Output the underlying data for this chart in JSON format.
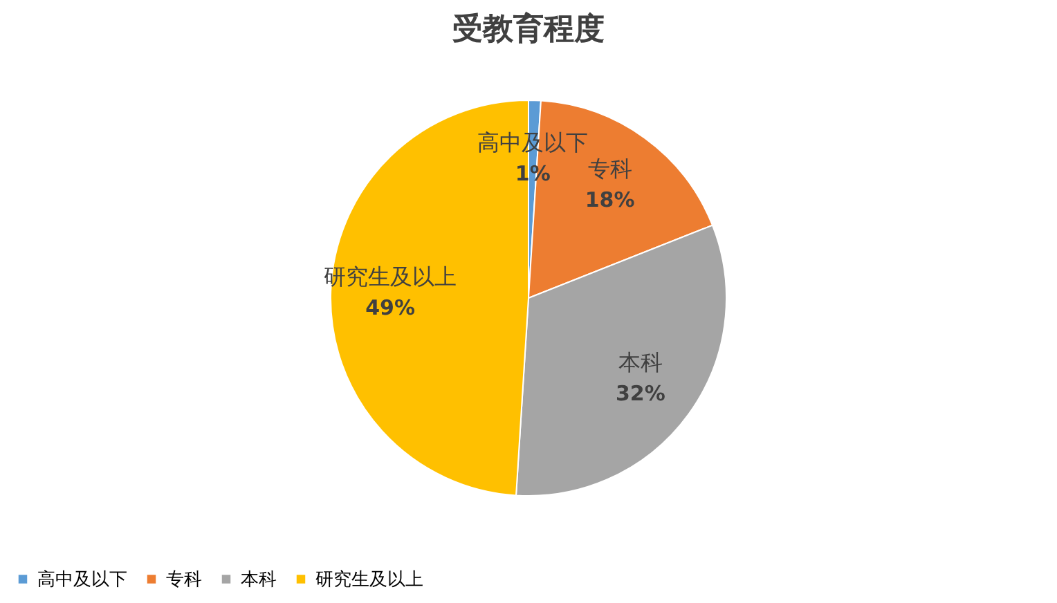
{
  "chart_data": {
    "type": "pie",
    "title": "受教育程度",
    "categories": [
      "高中及以下",
      "专科",
      "本科",
      "研究生及以上"
    ],
    "values": [
      1,
      18,
      32,
      49
    ],
    "colors": [
      "#5b9bd5",
      "#ed7d31",
      "#a5a5a5",
      "#ffc000"
    ],
    "value_labels": [
      "1%",
      "18%",
      "32%",
      "49%"
    ],
    "legend": "bottom"
  }
}
